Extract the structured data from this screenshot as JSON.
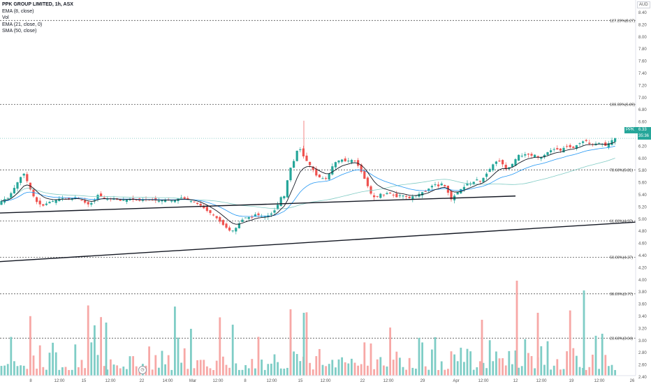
{
  "legend": {
    "title": "PPK GROUP LIMITED, 1h, ASX",
    "ind1": "EMA (8, close)",
    "ind2": "Vol",
    "ind3": "EMA (21, close, 0)",
    "ind4": "SMA (50, close)"
  },
  "currency": "AUD",
  "current": {
    "symbol": "PPK",
    "price": "6.33",
    "countdown": "35:36"
  },
  "timezone_icon": "clock-icon",
  "colors": {
    "up": "#26a69a",
    "down": "#ef5350",
    "ema8": "#131722",
    "ema21": "#2196f3",
    "sma50": "#80cbc4",
    "vol_up": "#7fcdc6",
    "vol_down": "#f7a8a6"
  },
  "chart_data": {
    "type": "candlestick",
    "price_range": [
      2.2,
      8.4
    ],
    "y_ticks": [
      "8.40",
      "8.20",
      "8.00",
      "7.80",
      "7.60",
      "7.40",
      "7.20",
      "7.00",
      "6.80",
      "6.60",
      "6.40",
      "6.20",
      "6.00",
      "5.80",
      "5.60",
      "5.40",
      "5.20",
      "5.00",
      "4.80",
      "4.60",
      "4.40",
      "4.20",
      "4.00",
      "3.80",
      "3.60",
      "3.40",
      "3.20",
      "3.00",
      "2.80",
      "2.60",
      "2.40"
    ],
    "x_ticks": [
      "8",
      "12:00",
      "15",
      "12:00",
      "22",
      "14:00",
      "Mar",
      "12:00",
      "8",
      "12:00",
      "15",
      "12:00",
      "22",
      "12:00",
      "29",
      "Apr",
      "12:00",
      "12",
      "12:00",
      "19",
      "12:00",
      "26"
    ],
    "fib_levels": [
      {
        "label": "127.20%(8.27)",
        "value": 8.27
      },
      {
        "label": "100.00%(6.89)",
        "value": 6.89
      },
      {
        "label": "78.60%(5.81)",
        "value": 5.81
      },
      {
        "label": "61.80%(4.97)",
        "value": 4.97
      },
      {
        "label": "50.00%(4.37)",
        "value": 4.37
      },
      {
        "label": "38.20%(3.77)",
        "value": 3.77
      },
      {
        "label": "23.60%(3.04)",
        "value": 3.04
      }
    ],
    "price_anchors": [
      [
        0,
        5.24
      ],
      [
        6,
        5.32
      ],
      [
        14,
        5.35
      ],
      [
        22,
        5.5
      ],
      [
        30,
        5.66
      ],
      [
        36,
        5.76
      ],
      [
        42,
        5.6
      ],
      [
        48,
        5.42
      ],
      [
        56,
        5.26
      ],
      [
        64,
        5.22
      ],
      [
        72,
        5.28
      ],
      [
        80,
        5.3
      ],
      [
        90,
        5.35
      ],
      [
        100,
        5.32
      ],
      [
        110,
        5.36
      ],
      [
        120,
        5.3
      ],
      [
        128,
        5.24
      ],
      [
        136,
        5.28
      ],
      [
        142,
        5.4
      ],
      [
        150,
        5.36
      ],
      [
        158,
        5.32
      ],
      [
        166,
        5.34
      ],
      [
        174,
        5.3
      ],
      [
        182,
        5.32
      ],
      [
        190,
        5.34
      ],
      [
        200,
        5.3
      ],
      [
        210,
        5.32
      ],
      [
        220,
        5.32
      ],
      [
        230,
        5.3
      ],
      [
        240,
        5.32
      ],
      [
        250,
        5.3
      ],
      [
        260,
        5.36
      ],
      [
        270,
        5.32
      ],
      [
        280,
        5.28
      ],
      [
        290,
        5.22
      ],
      [
        298,
        5.14
      ],
      [
        306,
        5.08
      ],
      [
        314,
        5.0
      ],
      [
        320,
        4.92
      ],
      [
        326,
        4.86
      ],
      [
        332,
        4.8
      ],
      [
        338,
        4.82
      ],
      [
        344,
        4.92
      ],
      [
        350,
        5.0
      ],
      [
        356,
        5.04
      ],
      [
        362,
        5.02
      ],
      [
        368,
        5.08
      ],
      [
        374,
        5.06
      ],
      [
        380,
        5.04
      ],
      [
        386,
        5.06
      ],
      [
        392,
        5.1
      ],
      [
        398,
        5.18
      ],
      [
        404,
        5.36
      ],
      [
        410,
        5.38
      ],
      [
        416,
        5.8
      ],
      [
        422,
        5.92
      ],
      [
        426,
        6.08
      ],
      [
        430,
        6.2
      ],
      [
        434,
        6.1
      ],
      [
        438,
        6.0
      ],
      [
        444,
        5.92
      ],
      [
        450,
        5.82
      ],
      [
        456,
        5.7
      ],
      [
        462,
        5.68
      ],
      [
        468,
        5.66
      ],
      [
        474,
        5.76
      ],
      [
        480,
        5.92
      ],
      [
        486,
        5.96
      ],
      [
        492,
        5.98
      ],
      [
        498,
        5.94
      ],
      [
        504,
        5.98
      ],
      [
        510,
        5.96
      ],
      [
        516,
        5.86
      ],
      [
        522,
        5.72
      ],
      [
        528,
        5.56
      ],
      [
        534,
        5.4
      ],
      [
        540,
        5.34
      ],
      [
        546,
        5.42
      ],
      [
        552,
        5.4
      ],
      [
        558,
        5.44
      ],
      [
        564,
        5.4
      ],
      [
        570,
        5.36
      ],
      [
        576,
        5.4
      ],
      [
        582,
        5.38
      ],
      [
        588,
        5.34
      ],
      [
        594,
        5.38
      ],
      [
        600,
        5.4
      ],
      [
        606,
        5.44
      ],
      [
        612,
        5.46
      ],
      [
        618,
        5.52
      ],
      [
        624,
        5.58
      ],
      [
        630,
        5.54
      ],
      [
        636,
        5.6
      ],
      [
        642,
        5.48
      ],
      [
        648,
        5.32
      ],
      [
        654,
        5.4
      ],
      [
        660,
        5.48
      ],
      [
        666,
        5.52
      ],
      [
        672,
        5.6
      ],
      [
        678,
        5.58
      ],
      [
        684,
        5.66
      ],
      [
        690,
        5.62
      ],
      [
        696,
        5.7
      ],
      [
        702,
        5.8
      ],
      [
        708,
        5.9
      ],
      [
        714,
        5.96
      ],
      [
        720,
        5.94
      ],
      [
        726,
        5.82
      ],
      [
        732,
        5.86
      ],
      [
        738,
        5.94
      ],
      [
        744,
        6.06
      ],
      [
        750,
        6.04
      ],
      [
        756,
        6.08
      ],
      [
        762,
        6.04
      ],
      [
        768,
        6.06
      ],
      [
        774,
        6.0
      ],
      [
        780,
        6.04
      ],
      [
        786,
        6.1
      ],
      [
        792,
        6.14
      ],
      [
        798,
        6.16
      ],
      [
        804,
        6.12
      ],
      [
        810,
        6.18
      ],
      [
        816,
        6.2
      ],
      [
        822,
        6.16
      ],
      [
        828,
        6.22
      ],
      [
        834,
        6.26
      ],
      [
        840,
        6.3
      ],
      [
        846,
        6.24
      ],
      [
        852,
        6.22
      ],
      [
        858,
        6.26
      ],
      [
        864,
        6.24
      ],
      [
        870,
        6.2
      ],
      [
        876,
        6.28
      ],
      [
        882,
        6.33
      ]
    ],
    "trendlines": [
      {
        "from": [
          0,
          5.1
        ],
        "to": [
          738,
          5.38
        ]
      },
      {
        "from": [
          0,
          4.3
        ],
        "to": [
          910,
          4.95
        ]
      }
    ]
  }
}
